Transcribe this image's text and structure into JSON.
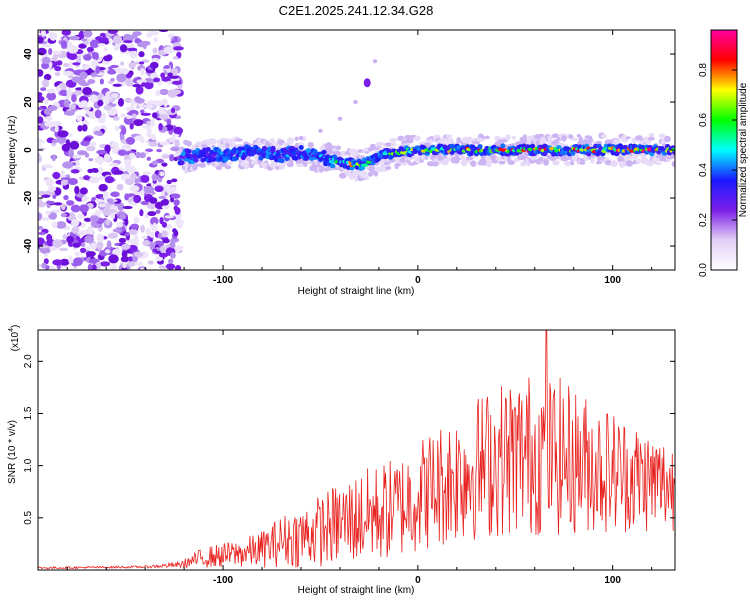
{
  "figure_title": "C2E1.2025.241.12.34.G28",
  "chart_data": [
    {
      "type": "heatmap",
      "name": "spectrogram",
      "xlabel": "Height of straight line (km)",
      "ylabel": "Frequency (Hz)",
      "xlim": [
        -195,
        132
      ],
      "ylim": [
        -50,
        50
      ],
      "xticks": [
        -100,
        0,
        100
      ],
      "xtick_labels": [
        "-100",
        "0",
        "100"
      ],
      "yticks": [
        -40,
        -20,
        0,
        20,
        40
      ],
      "ytick_labels": [
        "-40",
        "-20",
        "0",
        "20",
        "40"
      ],
      "noise_region_x": [
        -195,
        -122
      ],
      "ridge": {
        "x": [
          -122,
          -110,
          -100,
          -90,
          -80,
          -70,
          -60,
          -50,
          -40,
          -33,
          -28,
          -22,
          -18,
          -12,
          0,
          20,
          40,
          60,
          80,
          100,
          120,
          132
        ],
        "freq": [
          -3,
          -2,
          -2,
          -1,
          -1,
          -2,
          -1,
          -3,
          -5,
          -6,
          -6,
          -4,
          -2,
          -1,
          0,
          0,
          0,
          0,
          0,
          0,
          0,
          0
        ],
        "amplitude": [
          0.3,
          0.35,
          0.4,
          0.45,
          0.45,
          0.45,
          0.4,
          0.45,
          0.6,
          0.8,
          0.85,
          0.7,
          0.6,
          0.65,
          0.75,
          0.8,
          0.85,
          0.85,
          0.85,
          0.85,
          0.9,
          0.9
        ]
      },
      "secondary_track": {
        "x": [
          -60,
          -50,
          -40,
          -32,
          -26,
          -22
        ],
        "freq": [
          5,
          8,
          13,
          20,
          28,
          37
        ]
      },
      "colorbar": {
        "label": "Normalized spectral amplitude",
        "ticks": [
          0.0,
          0.2,
          0.4,
          0.6,
          0.8
        ],
        "tick_labels": [
          "0.0",
          "0.2",
          "0.4",
          "0.6",
          "0.8"
        ],
        "range": [
          0,
          0.96
        ],
        "colors": [
          "#ffffff",
          "#e2d0f5",
          "#7a1ee8",
          "#1a1aff",
          "#00ffff",
          "#00ff00",
          "#ffff00",
          "#ff0000",
          "#ff00a0"
        ]
      }
    },
    {
      "type": "line",
      "name": "snr",
      "series": [
        {
          "name": "SNR",
          "color": "#e8211e"
        }
      ],
      "xlabel": "Height of straight line (km)",
      "ylabel": "SNR (10 * v/v)",
      "scale_label": "(x10",
      "scale_exp": "4",
      "scale_close": ")",
      "xlim": [
        -195,
        132
      ],
      "ylim": [
        0,
        2.3
      ],
      "xticks": [
        -100,
        0,
        100
      ],
      "xtick_labels": [
        "-100",
        "0",
        "100"
      ],
      "yticks": [
        0.5,
        1.0,
        1.5,
        2.0
      ],
      "ytick_labels": [
        "0.5",
        "1.0",
        "1.5",
        "2.0"
      ],
      "envelope": {
        "x": [
          -195,
          -140,
          -122,
          -110,
          -100,
          -90,
          -80,
          -70,
          -60,
          -50,
          -40,
          -30,
          -20,
          -10,
          0,
          10,
          20,
          30,
          40,
          50,
          60,
          70,
          80,
          90,
          100,
          110,
          120,
          132
        ],
        "mean": [
          0.02,
          0.03,
          0.05,
          0.12,
          0.14,
          0.16,
          0.2,
          0.28,
          0.32,
          0.38,
          0.45,
          0.5,
          0.55,
          0.6,
          0.72,
          0.8,
          0.9,
          0.98,
          1.05,
          1.1,
          1.12,
          1.1,
          1.05,
          1.0,
          0.95,
          0.9,
          0.85,
          0.8
        ],
        "spread": [
          0.01,
          0.01,
          0.03,
          0.1,
          0.12,
          0.14,
          0.18,
          0.25,
          0.3,
          0.35,
          0.4,
          0.45,
          0.48,
          0.5,
          0.55,
          0.6,
          0.65,
          0.7,
          0.75,
          0.78,
          0.8,
          0.78,
          0.72,
          0.65,
          0.6,
          0.55,
          0.5,
          0.45
        ]
      },
      "peak": {
        "x": 66,
        "y": 2.3
      }
    }
  ]
}
